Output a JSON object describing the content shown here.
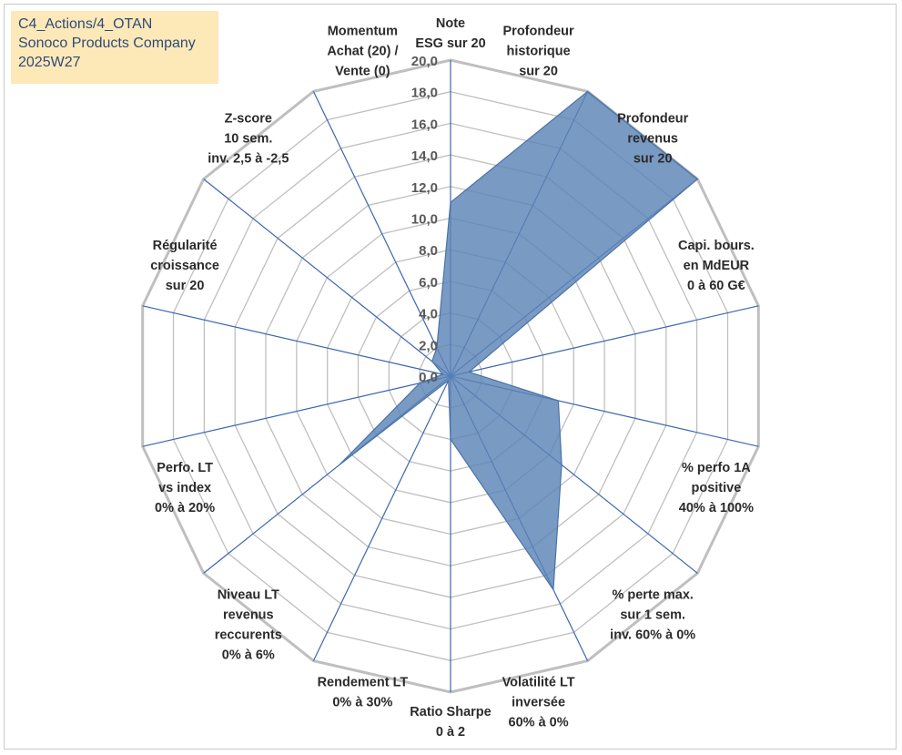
{
  "header": {
    "lines": [
      "C4_Actions/4_OTAN",
      "Sonoco Products Company",
      "2025W27"
    ],
    "box_color": "#fde9b8",
    "text_color": "#2f4a7a"
  },
  "chart_data": {
    "type": "radar",
    "title": "",
    "r_min": 0,
    "r_max": 20,
    "r_step": 2,
    "tick_labels": [
      "0,0",
      "2,0",
      "4,0",
      "6,0",
      "8,0",
      "10,0",
      "12,0",
      "14,0",
      "16,0",
      "18,0",
      "20,0"
    ],
    "axes": [
      {
        "label": [
          "Note",
          "ESG sur 20"
        ]
      },
      {
        "label": [
          "Profondeur",
          "historique",
          "sur 20"
        ]
      },
      {
        "label": [
          "Profondeur",
          "revenus",
          "sur 20"
        ]
      },
      {
        "label": [
          "Capi. bours.",
          "en MdEUR",
          "0 à 60 G€"
        ]
      },
      {
        "label": [
          "% perfo 1A",
          "positive",
          "40% à 100%"
        ]
      },
      {
        "label": [
          "% perte max.",
          "sur 1 sem.",
          "inv. 60% à 0%"
        ]
      },
      {
        "label": [
          "Volatilité LT",
          "inversée",
          "60% à 0%"
        ]
      },
      {
        "label": [
          "Ratio Sharpe",
          "0 à 2"
        ]
      },
      {
        "label": [
          "Rendement LT",
          "0% à 30%"
        ]
      },
      {
        "label": [
          "Niveau LT",
          "revenus",
          "reccurents",
          "0% à 6%"
        ]
      },
      {
        "label": [
          "Perfo. LT",
          "vs index",
          "0% à 20%"
        ]
      },
      {
        "label": [
          "Régularité",
          "croissance",
          "sur 20"
        ]
      },
      {
        "label": [
          "Z-score",
          "10 sem.",
          "inv. 2,5 à -2,5"
        ]
      },
      {
        "label": [
          "Momentum",
          "Achat (20) /",
          "Vente (0)"
        ]
      }
    ],
    "series": [
      {
        "values": [
          11.0,
          20.0,
          20.0,
          1.2,
          7.0,
          9.0,
          15.0,
          4.0,
          0.3,
          9.0,
          2.0,
          0.5,
          1.5,
          2.0
        ],
        "color": "#5b84b6"
      }
    ],
    "grid_color": "#bfbfbf",
    "spoke_color": "#3b67ad"
  }
}
